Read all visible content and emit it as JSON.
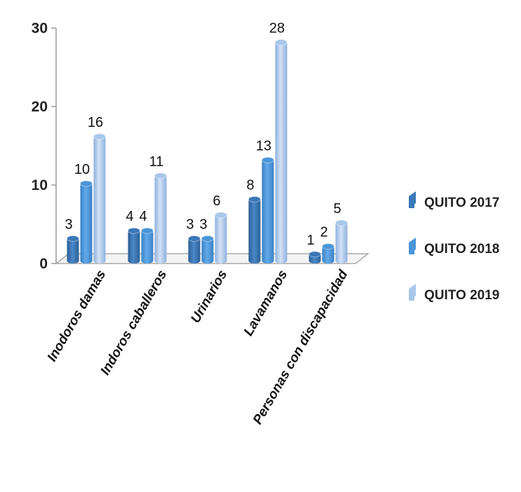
{
  "chart_data": {
    "type": "bar",
    "style": "3d-clustered-column",
    "categories": [
      "Inodoros damas",
      "Indoros caballeros",
      "Urinarios",
      "Lavamanos",
      "Personas con discapacidad"
    ],
    "series": [
      {
        "name": "QUITO 2017",
        "values": [
          3,
          4,
          3,
          8,
          1
        ],
        "color": "#3b78b8"
      },
      {
        "name": "QUITO 2018",
        "values": [
          10,
          4,
          3,
          13,
          2
        ],
        "color": "#4a96d8"
      },
      {
        "name": "QUITO 2019",
        "values": [
          16,
          11,
          6,
          28,
          5
        ],
        "color": "#a9c7ea"
      }
    ],
    "y_ticks": [
      "0",
      "10",
      "20",
      "30"
    ],
    "ylim": [
      0,
      30
    ],
    "grid": false,
    "legend_position": "right",
    "title": "",
    "xlabel": "",
    "ylabel": ""
  }
}
